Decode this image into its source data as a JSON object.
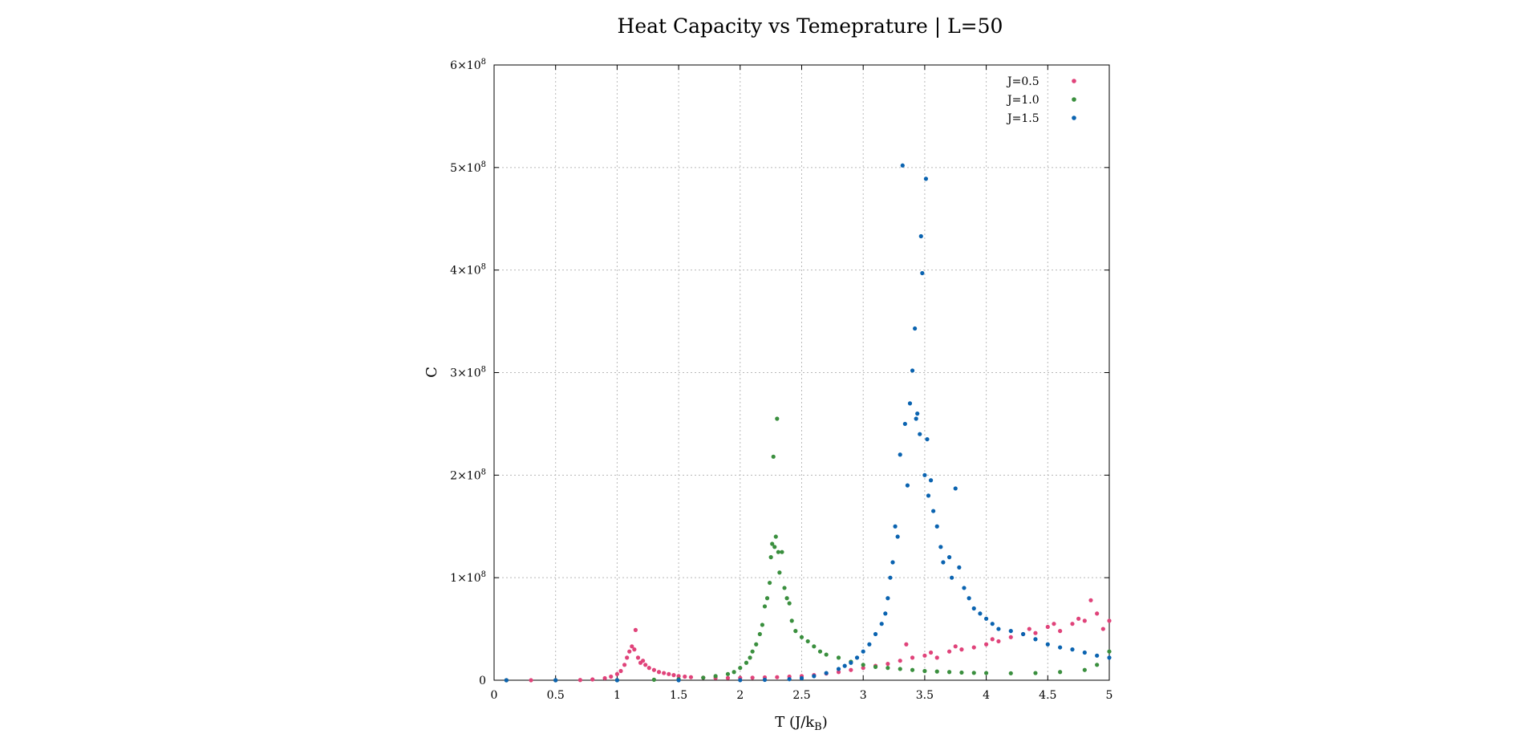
{
  "chart_data": {
    "type": "scatter",
    "title": "Heat Capacity vs Temeprature | L=50",
    "xlabel": "T (J/k",
    "xlabel_sub": "B",
    "xlabel_end": ")",
    "ylabel": "C",
    "xlim": [
      0,
      5
    ],
    "ylim": [
      0,
      600000000
    ],
    "x_ticks": [
      "0",
      "0.5",
      "1",
      "1.5",
      "2",
      "2.5",
      "3",
      "3.5",
      "4",
      "4.5",
      "5"
    ],
    "y_ticks": [
      {
        "value": 0,
        "mantissa": "0",
        "exp": ""
      },
      {
        "value": 100000000,
        "mantissa": "1×10",
        "exp": "8"
      },
      {
        "value": 200000000,
        "mantissa": "2×10",
        "exp": "8"
      },
      {
        "value": 300000000,
        "mantissa": "3×10",
        "exp": "8"
      },
      {
        "value": 400000000,
        "mantissa": "4×10",
        "exp": "8"
      },
      {
        "value": 500000000,
        "mantissa": "5×10",
        "exp": "8"
      },
      {
        "value": 600000000,
        "mantissa": "6×10",
        "exp": "8"
      }
    ],
    "grid": true,
    "legend_position": "top-right",
    "series": [
      {
        "name": "J=0.5",
        "color": "#e0437a",
        "points": [
          [
            0.1,
            0
          ],
          [
            0.3,
            0
          ],
          [
            0.5,
            0
          ],
          [
            0.7,
            200000
          ],
          [
            0.8,
            800000
          ],
          [
            0.9,
            2000000
          ],
          [
            0.95,
            3500000
          ],
          [
            1.0,
            6000000
          ],
          [
            1.03,
            9000000
          ],
          [
            1.06,
            15000000
          ],
          [
            1.08,
            22000000
          ],
          [
            1.1,
            28000000
          ],
          [
            1.12,
            33000000
          ],
          [
            1.14,
            30000000
          ],
          [
            1.15,
            49000000
          ],
          [
            1.17,
            22000000
          ],
          [
            1.19,
            17000000
          ],
          [
            1.21,
            19000000
          ],
          [
            1.23,
            15000000
          ],
          [
            1.26,
            12000000
          ],
          [
            1.3,
            10000000
          ],
          [
            1.34,
            8000000
          ],
          [
            1.38,
            7000000
          ],
          [
            1.42,
            6000000
          ],
          [
            1.46,
            5000000
          ],
          [
            1.5,
            4000000
          ],
          [
            1.55,
            3500000
          ],
          [
            1.6,
            3000000
          ],
          [
            1.7,
            2500000
          ],
          [
            1.8,
            2200000
          ],
          [
            1.9,
            2200000
          ],
          [
            2.0,
            2300000
          ],
          [
            2.1,
            2500000
          ],
          [
            2.2,
            2800000
          ],
          [
            2.3,
            3000000
          ],
          [
            2.4,
            3500000
          ],
          [
            2.5,
            4000000
          ],
          [
            2.6,
            5000000
          ],
          [
            2.7,
            6500000
          ],
          [
            2.8,
            8000000
          ],
          [
            2.9,
            10000000
          ],
          [
            3.0,
            12000000
          ],
          [
            3.1,
            14000000
          ],
          [
            3.2,
            16000000
          ],
          [
            3.3,
            19000000
          ],
          [
            3.35,
            35000000
          ],
          [
            3.4,
            22000000
          ],
          [
            3.5,
            24000000
          ],
          [
            3.55,
            27000000
          ],
          [
            3.6,
            22000000
          ],
          [
            3.7,
            28000000
          ],
          [
            3.75,
            33000000
          ],
          [
            3.8,
            30000000
          ],
          [
            3.9,
            32000000
          ],
          [
            4.0,
            35000000
          ],
          [
            4.05,
            40000000
          ],
          [
            4.1,
            38000000
          ],
          [
            4.2,
            42000000
          ],
          [
            4.3,
            45000000
          ],
          [
            4.35,
            50000000
          ],
          [
            4.4,
            46000000
          ],
          [
            4.5,
            52000000
          ],
          [
            4.55,
            55000000
          ],
          [
            4.6,
            48000000
          ],
          [
            4.7,
            55000000
          ],
          [
            4.75,
            60000000
          ],
          [
            4.8,
            58000000
          ],
          [
            4.85,
            78000000
          ],
          [
            4.9,
            65000000
          ],
          [
            4.95,
            50000000
          ],
          [
            5.0,
            58000000
          ]
        ]
      },
      {
        "name": "J=1.0",
        "color": "#3a8f3e",
        "points": [
          [
            0.1,
            0
          ],
          [
            0.5,
            0
          ],
          [
            1.0,
            100000
          ],
          [
            1.3,
            500000
          ],
          [
            1.5,
            1000000
          ],
          [
            1.7,
            2500000
          ],
          [
            1.8,
            4000000
          ],
          [
            1.9,
            6000000
          ],
          [
            1.95,
            8000000
          ],
          [
            2.0,
            12000000
          ],
          [
            2.05,
            17000000
          ],
          [
            2.08,
            22000000
          ],
          [
            2.1,
            28000000
          ],
          [
            2.13,
            35000000
          ],
          [
            2.16,
            45000000
          ],
          [
            2.18,
            54000000
          ],
          [
            2.2,
            72000000
          ],
          [
            2.22,
            80000000
          ],
          [
            2.24,
            95000000
          ],
          [
            2.25,
            120000000
          ],
          [
            2.26,
            133000000
          ],
          [
            2.27,
            218000000
          ],
          [
            2.28,
            130000000
          ],
          [
            2.29,
            140000000
          ],
          [
            2.3,
            255000000
          ],
          [
            2.31,
            125000000
          ],
          [
            2.32,
            105000000
          ],
          [
            2.34,
            125000000
          ],
          [
            2.36,
            90000000
          ],
          [
            2.38,
            80000000
          ],
          [
            2.4,
            75000000
          ],
          [
            2.42,
            58000000
          ],
          [
            2.45,
            48000000
          ],
          [
            2.5,
            42000000
          ],
          [
            2.55,
            38000000
          ],
          [
            2.6,
            33000000
          ],
          [
            2.65,
            28000000
          ],
          [
            2.7,
            25000000
          ],
          [
            2.8,
            22000000
          ],
          [
            2.9,
            18000000
          ],
          [
            3.0,
            15000000
          ],
          [
            3.1,
            13000000
          ],
          [
            3.2,
            12000000
          ],
          [
            3.3,
            11000000
          ],
          [
            3.4,
            10000000
          ],
          [
            3.5,
            9000000
          ],
          [
            3.6,
            8500000
          ],
          [
            3.7,
            8000000
          ],
          [
            3.8,
            7500000
          ],
          [
            3.9,
            7200000
          ],
          [
            4.0,
            7000000
          ],
          [
            4.2,
            6800000
          ],
          [
            4.4,
            7000000
          ],
          [
            4.6,
            8000000
          ],
          [
            4.8,
            10000000
          ],
          [
            4.9,
            15000000
          ],
          [
            5.0,
            28000000
          ]
        ]
      },
      {
        "name": "J=1.5",
        "color": "#0a63b0",
        "points": [
          [
            0.1,
            0
          ],
          [
            0.5,
            0
          ],
          [
            1.0,
            0
          ],
          [
            1.5,
            0
          ],
          [
            2.0,
            100000
          ],
          [
            2.2,
            400000
          ],
          [
            2.4,
            1000000
          ],
          [
            2.5,
            2000000
          ],
          [
            2.6,
            4000000
          ],
          [
            2.7,
            7000000
          ],
          [
            2.8,
            11000000
          ],
          [
            2.85,
            14000000
          ],
          [
            2.9,
            17000000
          ],
          [
            2.95,
            22000000
          ],
          [
            3.0,
            28000000
          ],
          [
            3.05,
            35000000
          ],
          [
            3.1,
            45000000
          ],
          [
            3.15,
            55000000
          ],
          [
            3.18,
            65000000
          ],
          [
            3.2,
            80000000
          ],
          [
            3.22,
            100000000
          ],
          [
            3.24,
            115000000
          ],
          [
            3.26,
            150000000
          ],
          [
            3.28,
            140000000
          ],
          [
            3.3,
            220000000
          ],
          [
            3.32,
            502000000
          ],
          [
            3.34,
            250000000
          ],
          [
            3.36,
            190000000
          ],
          [
            3.38,
            270000000
          ],
          [
            3.4,
            302000000
          ],
          [
            3.42,
            343000000
          ],
          [
            3.43,
            255000000
          ],
          [
            3.44,
            260000000
          ],
          [
            3.46,
            240000000
          ],
          [
            3.47,
            433000000
          ],
          [
            3.48,
            397000000
          ],
          [
            3.5,
            200000000
          ],
          [
            3.51,
            489000000
          ],
          [
            3.52,
            235000000
          ],
          [
            3.53,
            180000000
          ],
          [
            3.55,
            195000000
          ],
          [
            3.57,
            165000000
          ],
          [
            3.6,
            150000000
          ],
          [
            3.63,
            130000000
          ],
          [
            3.65,
            115000000
          ],
          [
            3.7,
            120000000
          ],
          [
            3.72,
            100000000
          ],
          [
            3.75,
            187000000
          ],
          [
            3.78,
            110000000
          ],
          [
            3.82,
            90000000
          ],
          [
            3.86,
            80000000
          ],
          [
            3.9,
            70000000
          ],
          [
            3.95,
            65000000
          ],
          [
            4.0,
            60000000
          ],
          [
            4.05,
            55000000
          ],
          [
            4.1,
            50000000
          ],
          [
            4.2,
            48000000
          ],
          [
            4.3,
            45000000
          ],
          [
            4.4,
            40000000
          ],
          [
            4.5,
            35000000
          ],
          [
            4.6,
            32000000
          ],
          [
            4.7,
            30000000
          ],
          [
            4.8,
            27000000
          ],
          [
            4.9,
            24000000
          ],
          [
            5.0,
            22000000
          ]
        ]
      }
    ]
  }
}
